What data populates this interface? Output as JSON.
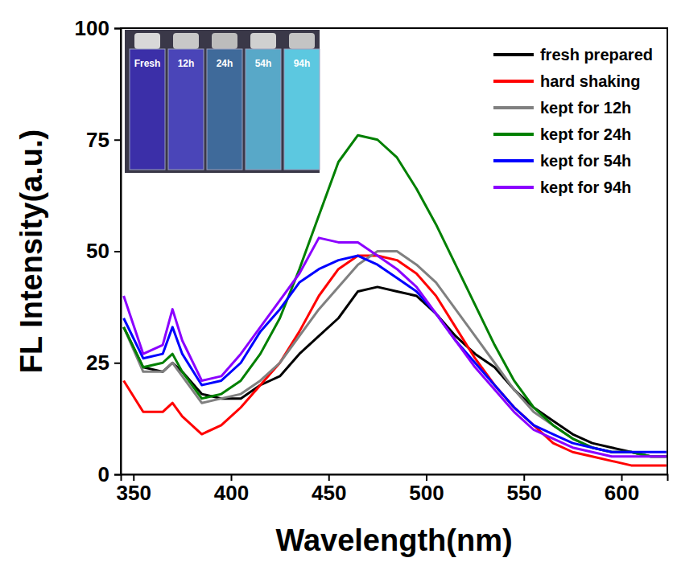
{
  "chart_data": {
    "type": "line",
    "x_label": "Wavelength(nm)",
    "y_label": "FL Intensity(a.u.)",
    "annotations": [
      "Fresh",
      "12h",
      "24h",
      "54h",
      "94h"
    ],
    "x": [
      345,
      355,
      365,
      370,
      375,
      385,
      395,
      405,
      415,
      425,
      435,
      445,
      455,
      465,
      475,
      485,
      495,
      505,
      515,
      525,
      535,
      545,
      555,
      565,
      575,
      585,
      595,
      605,
      615,
      623
    ],
    "series": [
      {
        "name": "fresh prepared",
        "color": "#000000",
        "values": [
          33,
          24,
          23,
          25,
          23,
          18,
          17,
          17,
          20,
          22,
          27,
          31,
          35,
          41,
          42,
          41,
          40,
          36,
          31,
          27,
          24,
          19,
          15,
          12,
          9,
          7,
          6,
          5,
          4,
          4
        ]
      },
      {
        "name": "hard shaking",
        "color": "#ff0000",
        "values": [
          21,
          14,
          14,
          16,
          13,
          9,
          11,
          15,
          20,
          25,
          32,
          40,
          46,
          49,
          49,
          48,
          45,
          40,
          33,
          26,
          20,
          15,
          11,
          7,
          5,
          4,
          3,
          2,
          2,
          2
        ]
      },
      {
        "name": "kept for 12h",
        "color": "#808080",
        "values": [
          33,
          23,
          23,
          25,
          22,
          16,
          17,
          18,
          21,
          25,
          31,
          37,
          42,
          47,
          50,
          50,
          47,
          43,
          37,
          31,
          25,
          19,
          14,
          11,
          8,
          6,
          5,
          5,
          4,
          4
        ]
      },
      {
        "name": "kept for 24h",
        "color": "#008000",
        "values": [
          33,
          24,
          25,
          27,
          23,
          17,
          18,
          21,
          27,
          35,
          46,
          58,
          70,
          76,
          75,
          71,
          64,
          56,
          47,
          38,
          29,
          21,
          15,
          11,
          8,
          6,
          5,
          5,
          4,
          4
        ]
      },
      {
        "name": "kept for 54h",
        "color": "#0000ff",
        "values": [
          35,
          26,
          27,
          33,
          27,
          20,
          21,
          25,
          32,
          37,
          43,
          46,
          48,
          49,
          47,
          44,
          41,
          36,
          30,
          25,
          20,
          15,
          11,
          9,
          7,
          6,
          5,
          5,
          5,
          5
        ]
      },
      {
        "name": "kept for 94h",
        "color": "#8b00ff",
        "values": [
          40,
          27,
          29,
          37,
          30,
          21,
          22,
          27,
          33,
          39,
          45,
          53,
          52,
          52,
          49,
          46,
          42,
          36,
          30,
          24,
          19,
          14,
          10,
          8,
          6,
          5,
          4,
          4,
          4,
          4
        ]
      }
    ],
    "xlim": [
      343.5,
      623.5
    ],
    "ylim": [
      0,
      100
    ],
    "xticks": [
      350,
      400,
      450,
      500,
      550,
      600
    ],
    "yticks": [
      0,
      25,
      50,
      75,
      100
    ],
    "legend": "upper right"
  }
}
